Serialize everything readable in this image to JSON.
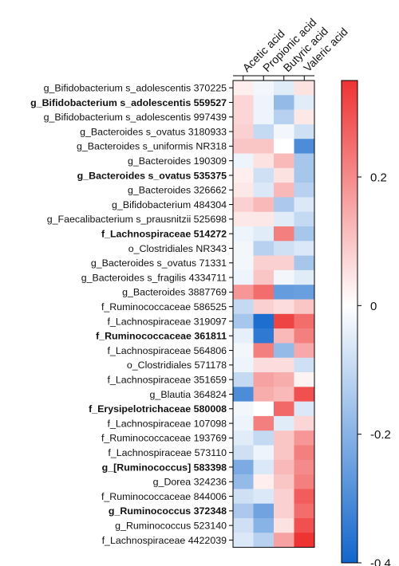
{
  "chart_data": {
    "type": "heatmap",
    "title": "",
    "xlabel": "",
    "ylabel": "",
    "columns": [
      "Acetic acid",
      "Propionic acid",
      "Butyric acid",
      "Valeric acid"
    ],
    "rows": [
      {
        "label": "g_Bifidobacterium s_adolescentis 370225",
        "bold": false
      },
      {
        "label": "g_Bifidobacterium s_adolescentis 559527",
        "bold": true
      },
      {
        "label": "g_Bifidobacterium s_adolescentis 997439",
        "bold": false
      },
      {
        "label": "g_Bacteroides s_ovatus 3180933",
        "bold": false
      },
      {
        "label": "g_Bacteroides s_uniformis NR318",
        "bold": false
      },
      {
        "label": "g_Bacteroides 190309",
        "bold": false
      },
      {
        "label": "g_Bacteroides s_ovatus 535375",
        "bold": true
      },
      {
        "label": "g_Bacteroides 326662",
        "bold": false
      },
      {
        "label": "g_Bifidobacterium 484304",
        "bold": false
      },
      {
        "label": "g_Faecalibacterium s_prausnitzii 525698",
        "bold": false
      },
      {
        "label": "f_Lachnospiraceae 514272",
        "bold": true
      },
      {
        "label": "o_Clostridiales NR343",
        "bold": false
      },
      {
        "label": "g_Bacteroides s_ovatus 71331",
        "bold": false
      },
      {
        "label": "g_Bacteroides s_fragilis 4334711",
        "bold": false
      },
      {
        "label": "g_Bacteroides 3887769",
        "bold": false
      },
      {
        "label": "f_Ruminococcaceae 586525",
        "bold": false
      },
      {
        "label": "f_Lachnospiraceae 319097",
        "bold": false
      },
      {
        "label": "f_Ruminococcaceae 361811",
        "bold": true
      },
      {
        "label": "f_Lachnospiraceae 564806",
        "bold": false
      },
      {
        "label": "o_Clostridiales 571178",
        "bold": false
      },
      {
        "label": "f_Lachnospiraceae 351659",
        "bold": false
      },
      {
        "label": "g_Blautia 364824",
        "bold": false
      },
      {
        "label": "f_Erysipelotrichaceae 580008",
        "bold": true
      },
      {
        "label": "f_Lachnospiraceae 107098",
        "bold": false
      },
      {
        "label": "f_Ruminococcaceae 193769",
        "bold": false
      },
      {
        "label": "f_Lachnospiraceae 573110",
        "bold": false
      },
      {
        "label": "g_[Ruminococcus] 583398",
        "bold": true
      },
      {
        "label": "g_Dorea 324236",
        "bold": false
      },
      {
        "label": "f_Ruminococcaceae 844006",
        "bold": false
      },
      {
        "label": "g_Ruminococcus 372348",
        "bold": true
      },
      {
        "label": "g_Ruminococcus 523140",
        "bold": false
      },
      {
        "label": "f_Lachnospiraceae 4422039",
        "bold": false
      }
    ],
    "values": [
      [
        0.03,
        -0.02,
        -0.05,
        0.05
      ],
      [
        0.07,
        -0.03,
        -0.18,
        -0.05
      ],
      [
        0.07,
        -0.03,
        -0.12,
        0.04
      ],
      [
        0.08,
        -0.1,
        -0.02,
        -0.08
      ],
      [
        0.1,
        0.1,
        0.0,
        -0.3
      ],
      [
        -0.03,
        0.05,
        0.12,
        -0.15
      ],
      [
        0.03,
        -0.08,
        0.05,
        -0.15
      ],
      [
        0.04,
        -0.06,
        0.12,
        -0.12
      ],
      [
        0.08,
        0.12,
        -0.14,
        -0.06
      ],
      [
        0.04,
        0.04,
        -0.05,
        -0.1
      ],
      [
        -0.03,
        -0.05,
        0.22,
        -0.15
      ],
      [
        -0.02,
        -0.12,
        -0.08,
        -0.06
      ],
      [
        -0.02,
        0.08,
        0.08,
        -0.15
      ],
      [
        -0.03,
        0.1,
        -0.02,
        -0.05
      ],
      [
        0.18,
        0.25,
        -0.26,
        -0.25
      ],
      [
        -0.1,
        0.08,
        0.06,
        0.1
      ],
      [
        -0.15,
        -0.38,
        0.32,
        0.25
      ],
      [
        -0.04,
        -0.35,
        0.12,
        0.22
      ],
      [
        -0.02,
        0.22,
        -0.18,
        0.15
      ],
      [
        -0.03,
        0.06,
        0.06,
        -0.08
      ],
      [
        -0.1,
        0.16,
        0.14,
        0.02
      ],
      [
        -0.3,
        0.14,
        0.12,
        0.3
      ],
      [
        -0.02,
        0.0,
        0.26,
        -0.06
      ],
      [
        -0.03,
        0.22,
        -0.05,
        0.07
      ],
      [
        -0.05,
        -0.1,
        0.1,
        0.18
      ],
      [
        -0.08,
        -0.03,
        0.1,
        0.22
      ],
      [
        -0.22,
        -0.06,
        0.12,
        0.2
      ],
      [
        -0.18,
        0.03,
        0.1,
        0.22
      ],
      [
        -0.08,
        -0.06,
        0.08,
        0.28
      ],
      [
        -0.14,
        -0.24,
        0.08,
        0.25
      ],
      [
        -0.08,
        -0.2,
        0.05,
        0.3
      ],
      [
        -0.06,
        -0.12,
        0.16,
        0.35
      ]
    ],
    "colorbar": {
      "min": -0.4,
      "max": 0.35,
      "ticks": [
        0.2,
        0,
        -0.2,
        -0.4
      ],
      "tick_labels": [
        "0.2",
        "0",
        "-0.2",
        "-0.4"
      ],
      "low_color": "#1166cc",
      "mid_color": "#ffffff",
      "high_color": "#ee3333"
    },
    "grid": false,
    "legend": "colorbar-right"
  }
}
